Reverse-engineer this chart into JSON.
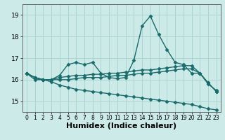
{
  "bg_color": "#cceae8",
  "grid_color": "#aad4d2",
  "line_color": "#1a6b6b",
  "line_width": 1.0,
  "marker": "D",
  "marker_size": 2.5,
  "xlabel": "Humidex (Indice chaleur)",
  "xlabel_fontsize": 8,
  "tick_fontsize": 6.5,
  "xlim": [
    -0.5,
    23.5
  ],
  "ylim": [
    14.5,
    19.5
  ],
  "yticks": [
    15,
    16,
    17,
    18,
    19
  ],
  "xticks": [
    0,
    1,
    2,
    3,
    4,
    5,
    6,
    7,
    8,
    9,
    10,
    11,
    12,
    13,
    14,
    15,
    16,
    17,
    18,
    19,
    20,
    21,
    22,
    23
  ],
  "series": [
    {
      "x": [
        0,
        1,
        2,
        3,
        4,
        5,
        6,
        7,
        8,
        9,
        10,
        11,
        12,
        13,
        14,
        15,
        16,
        17,
        18,
        19,
        20,
        21,
        22,
        23
      ],
      "y": [
        16.3,
        16.0,
        16.0,
        16.0,
        16.2,
        16.7,
        16.8,
        16.7,
        16.8,
        16.3,
        16.1,
        16.05,
        16.1,
        16.9,
        18.5,
        18.95,
        18.1,
        17.4,
        16.8,
        16.7,
        16.3,
        16.3,
        15.8,
        15.5
      ]
    },
    {
      "x": [
        0,
        1,
        2,
        3,
        4,
        5,
        6,
        7,
        8,
        9,
        10,
        11,
        12,
        13,
        14,
        15,
        16,
        17,
        18,
        19,
        20,
        21,
        22,
        23
      ],
      "y": [
        16.3,
        16.1,
        16.0,
        16.0,
        16.1,
        16.15,
        16.2,
        16.2,
        16.25,
        16.25,
        16.3,
        16.3,
        16.35,
        16.4,
        16.45,
        16.45,
        16.5,
        16.55,
        16.6,
        16.65,
        16.65,
        16.3,
        15.85,
        15.45
      ]
    },
    {
      "x": [
        0,
        1,
        2,
        3,
        4,
        5,
        6,
        7,
        8,
        9,
        10,
        11,
        12,
        13,
        14,
        15,
        16,
        17,
        18,
        19,
        20,
        21,
        22,
        23
      ],
      "y": [
        16.3,
        16.1,
        16.0,
        16.0,
        16.0,
        16.0,
        16.05,
        16.1,
        16.1,
        16.1,
        16.15,
        16.2,
        16.2,
        16.25,
        16.3,
        16.3,
        16.35,
        16.4,
        16.45,
        16.5,
        16.5,
        16.3,
        15.85,
        15.45
      ]
    },
    {
      "x": [
        0,
        1,
        2,
        3,
        4,
        5,
        6,
        7,
        8,
        9,
        10,
        11,
        12,
        13,
        14,
        15,
        16,
        17,
        18,
        19,
        20,
        21,
        22,
        23
      ],
      "y": [
        16.3,
        16.1,
        16.0,
        15.9,
        15.75,
        15.65,
        15.55,
        15.5,
        15.45,
        15.4,
        15.35,
        15.3,
        15.25,
        15.2,
        15.15,
        15.1,
        15.05,
        15.0,
        14.95,
        14.9,
        14.85,
        14.75,
        14.65,
        14.6
      ]
    }
  ]
}
